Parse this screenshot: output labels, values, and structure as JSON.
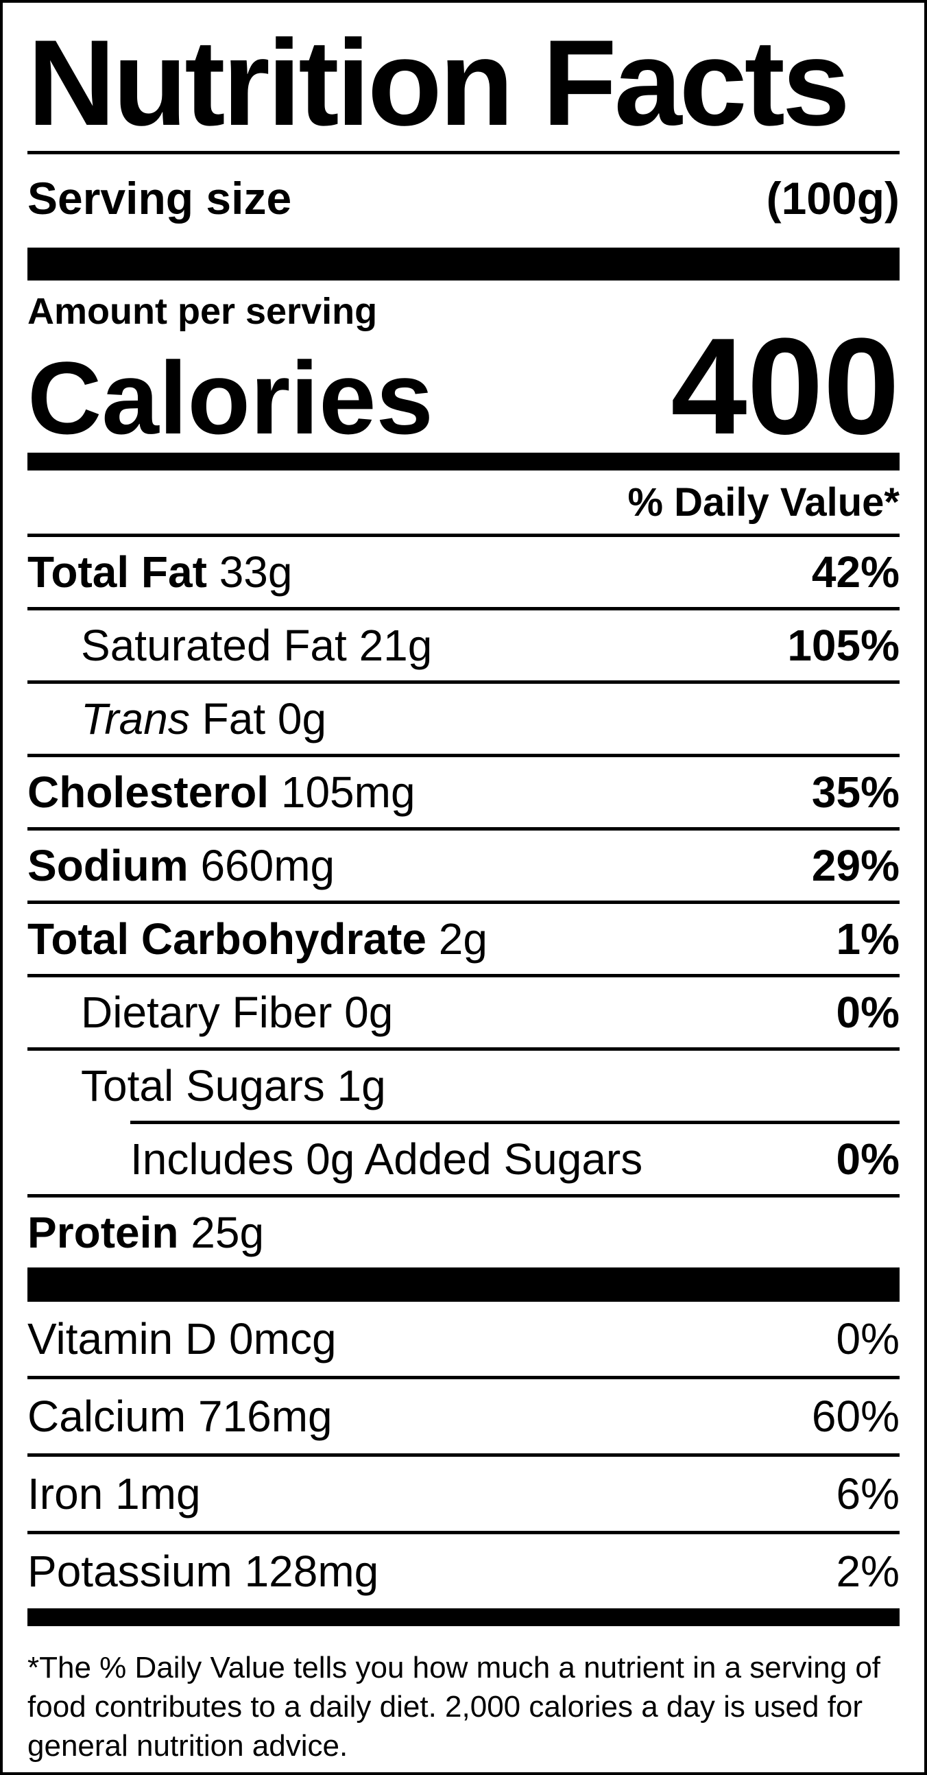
{
  "label": {
    "title": "Nutrition Facts",
    "serving": {
      "label": "Serving size",
      "value": "(100g)"
    },
    "amount_per_serving": "Amount per serving",
    "calories": {
      "label": "Calories",
      "value": "400"
    },
    "daily_value_header": "% Daily Value*",
    "colors": {
      "ink": "#000000",
      "background": "#ffffff"
    },
    "nutrients": [
      {
        "bold": "Total Fat",
        "italic": "",
        "name": "",
        "amount": " 33g",
        "dv": "42%"
      },
      {
        "bold": "",
        "italic": "",
        "name": "Saturated Fat",
        "amount": " 21g",
        "dv": "105%"
      },
      {
        "bold": "",
        "italic": "Trans",
        "name": "",
        "amount": " Fat 0g",
        "dv": ""
      },
      {
        "bold": "Cholesterol",
        "italic": "",
        "name": "",
        "amount": " 105mg",
        "dv": "35%"
      },
      {
        "bold": "Sodium",
        "italic": "",
        "name": "",
        "amount": " 660mg",
        "dv": "29%"
      },
      {
        "bold": "Total Carbohydrate",
        "italic": "",
        "name": "",
        "amount": " 2g",
        "dv": "1%"
      },
      {
        "bold": "",
        "italic": "",
        "name": "Dietary Fiber",
        "amount": " 0g",
        "dv": "0%"
      },
      {
        "bold": "",
        "italic": "",
        "name": "Total Sugars",
        "amount": " 1g",
        "dv": ""
      },
      {
        "bold": "",
        "italic": "",
        "name": "Includes 0g Added Sugars",
        "amount": "",
        "dv": "0%"
      },
      {
        "bold": "Protein",
        "italic": "",
        "name": "",
        "amount": " 25g",
        "dv": ""
      }
    ],
    "vitamins": [
      {
        "name": "Vitamin D 0mcg",
        "dv": "0%"
      },
      {
        "name": "Calcium 716mg",
        "dv": "60%"
      },
      {
        "name": "Iron 1mg",
        "dv": "6%"
      },
      {
        "name": "Potassium 128mg",
        "dv": "2%"
      }
    ],
    "footnote": "*The % Daily Value tells you how much a nutrient in a serving of food contributes to a daily diet. 2,000 calories a day is used for general nutrition advice."
  }
}
